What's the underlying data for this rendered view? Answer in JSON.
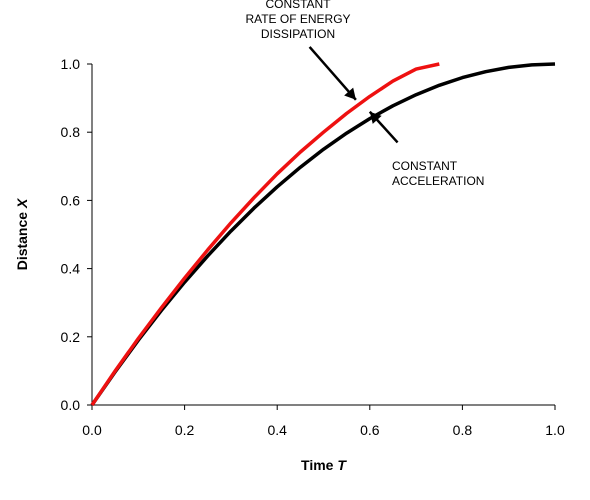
{
  "chart_data": {
    "type": "line",
    "title": "",
    "xlabel": "Time",
    "xlabel_var": "T",
    "ylabel": "Distance",
    "ylabel_var": "X",
    "xlim": [
      0,
      1
    ],
    "ylim": [
      0,
      1
    ],
    "xticks": [
      "0.0",
      "0.2",
      "0.4",
      "0.6",
      "0.8",
      "1.0"
    ],
    "yticks": [
      "0.0",
      "0.2",
      "0.4",
      "0.6",
      "0.8",
      "1.0"
    ],
    "grid": false,
    "legend": "none",
    "series": [
      {
        "color": "#000000",
        "x": [
          0,
          0.05,
          0.1,
          0.15,
          0.2,
          0.25,
          0.3,
          0.35,
          0.4,
          0.45,
          0.5,
          0.55,
          0.6,
          0.65,
          0.7,
          0.75,
          0.8,
          0.85,
          0.9,
          0.95,
          1.0
        ],
        "y": [
          0,
          0.0975,
          0.19,
          0.2775,
          0.36,
          0.4375,
          0.51,
          0.5775,
          0.64,
          0.6975,
          0.75,
          0.7975,
          0.84,
          0.8775,
          0.91,
          0.9375,
          0.96,
          0.9775,
          0.99,
          0.9975,
          1.0
        ]
      },
      {
        "color": "#ee1111",
        "x": [
          0,
          0.05,
          0.1,
          0.15,
          0.2,
          0.25,
          0.3,
          0.35,
          0.4,
          0.45,
          0.5,
          0.55,
          0.6,
          0.65,
          0.7,
          0.75
        ],
        "y": [
          0,
          0.1,
          0.195,
          0.285,
          0.372,
          0.455,
          0.534,
          0.608,
          0.678,
          0.742,
          0.8,
          0.855,
          0.905,
          0.95,
          0.985,
          1.0
        ]
      }
    ],
    "annotations": [
      {
        "lines": [
          "CONSTANT",
          "RATE OF ENERGY",
          "DISSIPATION"
        ],
        "target": [
          0.57,
          0.895
        ],
        "arrow_from": [
          0.47,
          1.05
        ]
      },
      {
        "lines": [
          "CONSTANT",
          "ACCELERATION"
        ],
        "target": [
          0.6,
          0.86
        ],
        "arrow_from": [
          0.66,
          0.77
        ]
      }
    ]
  }
}
